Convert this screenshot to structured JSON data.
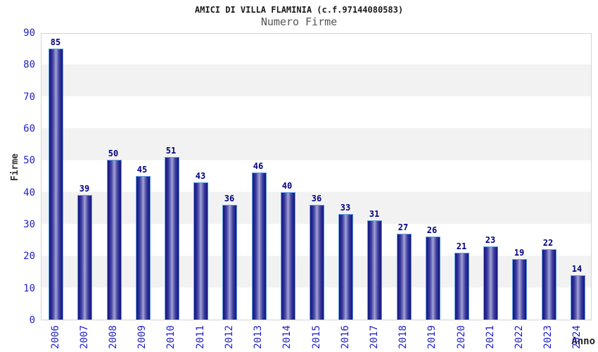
{
  "chart_data": {
    "type": "bar",
    "title": "AMICI DI VILLA FLAMINIA (c.f.97144080583)",
    "subtitle": "Numero Firme",
    "xlabel": "Anno",
    "ylabel": "Firme",
    "categories": [
      "2006",
      "2007",
      "2008",
      "2009",
      "2010",
      "2011",
      "2012",
      "2013",
      "2014",
      "2015",
      "2016",
      "2017",
      "2018",
      "2019",
      "2020",
      "2021",
      "2022",
      "2023",
      "2024"
    ],
    "values": [
      85,
      39,
      50,
      45,
      51,
      43,
      36,
      46,
      40,
      36,
      33,
      31,
      27,
      26,
      21,
      23,
      19,
      22,
      14
    ],
    "yticks": [
      0,
      10,
      20,
      30,
      40,
      50,
      60,
      70,
      80,
      90
    ],
    "ylim": [
      0,
      90
    ],
    "grid": "horizontal-bands",
    "legend": "none",
    "colors": {
      "bar_dark": "#14147a",
      "bar_light": "#a6a6da",
      "bar_border": "#5e9fe0",
      "tick_label": "#2222cc",
      "value_label": "#000080",
      "band_gray": "#f2f2f2",
      "plot_border": "#d4d4d4",
      "title": "#1a1a1a",
      "subtitle": "#555555",
      "axis_label": "#333333"
    }
  }
}
